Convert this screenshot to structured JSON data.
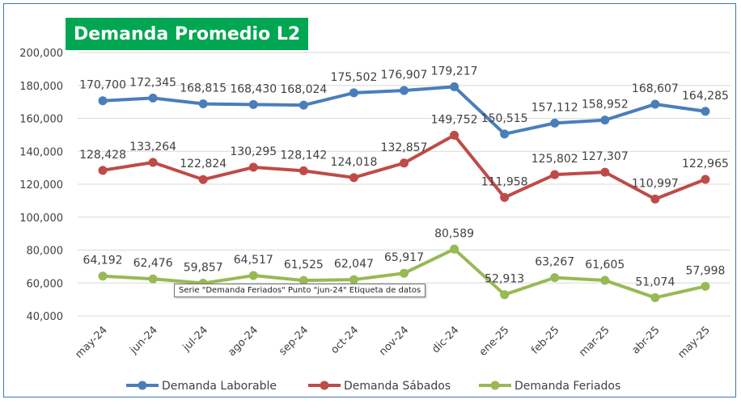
{
  "chart_data": {
    "type": "line",
    "title": "Demanda Promedio L2",
    "categories": [
      "may-24",
      "jun-24",
      "jul-24",
      "ago-24",
      "sep-24",
      "oct-24",
      "nov-24",
      "dic-24",
      "ene-25",
      "feb-25",
      "mar-25",
      "abr-25",
      "may-25"
    ],
    "ylim": [
      40000,
      200000
    ],
    "yticks": [
      40000,
      60000,
      80000,
      100000,
      120000,
      140000,
      160000,
      180000,
      200000
    ],
    "ytick_labels": [
      "40,000",
      "60,000",
      "80,000",
      "100,000",
      "120,000",
      "140,000",
      "160,000",
      "180,000",
      "200,000"
    ],
    "grid": true,
    "legend_position": "bottom",
    "series": [
      {
        "name": "Demanda Laborable",
        "color": "#4a7ebb",
        "values": [
          170700,
          172345,
          168815,
          168430,
          168024,
          175502,
          176907,
          179217,
          150515,
          157112,
          158952,
          168607,
          164285
        ],
        "labels": [
          "170,700",
          "172,345",
          "168,815",
          "168,430",
          "168,024",
          "175,502",
          "176,907",
          "179,217",
          "150,515",
          "157,112",
          "158,952",
          "168,607",
          "164,285"
        ]
      },
      {
        "name": "Demanda Sábados",
        "color": "#be4b48",
        "values": [
          128428,
          133264,
          122824,
          130295,
          128142,
          124018,
          132857,
          149752,
          111958,
          125802,
          127307,
          110997,
          122965
        ],
        "labels": [
          "128,428",
          "133,264",
          "122,824",
          "130,295",
          "128,142",
          "124,018",
          "132,857",
          "149,752",
          "111,958",
          "125,802",
          "127,307",
          "110,997",
          "122,965"
        ]
      },
      {
        "name": "Demanda Feriados",
        "color": "#98b954",
        "values": [
          64192,
          62476,
          59857,
          64517,
          61525,
          62047,
          65917,
          80589,
          52913,
          63267,
          61605,
          51074,
          57998
        ],
        "labels": [
          "64,192",
          "62,476",
          "59,857",
          "64,517",
          "61,525",
          "62,047",
          "65,917",
          "80,589",
          "52,913",
          "63,267",
          "61,605",
          "51,074",
          "57,998"
        ]
      }
    ]
  },
  "tooltip_text": "Serie \"Demanda Feriados\" Punto \"jun-24\" Etiqueta de datos",
  "colors": {
    "frame": "#4472c4",
    "title_bg": "#00a651",
    "title_text": "#ffffff",
    "grid": "#d9d9d9",
    "axis_text": "#404040"
  }
}
